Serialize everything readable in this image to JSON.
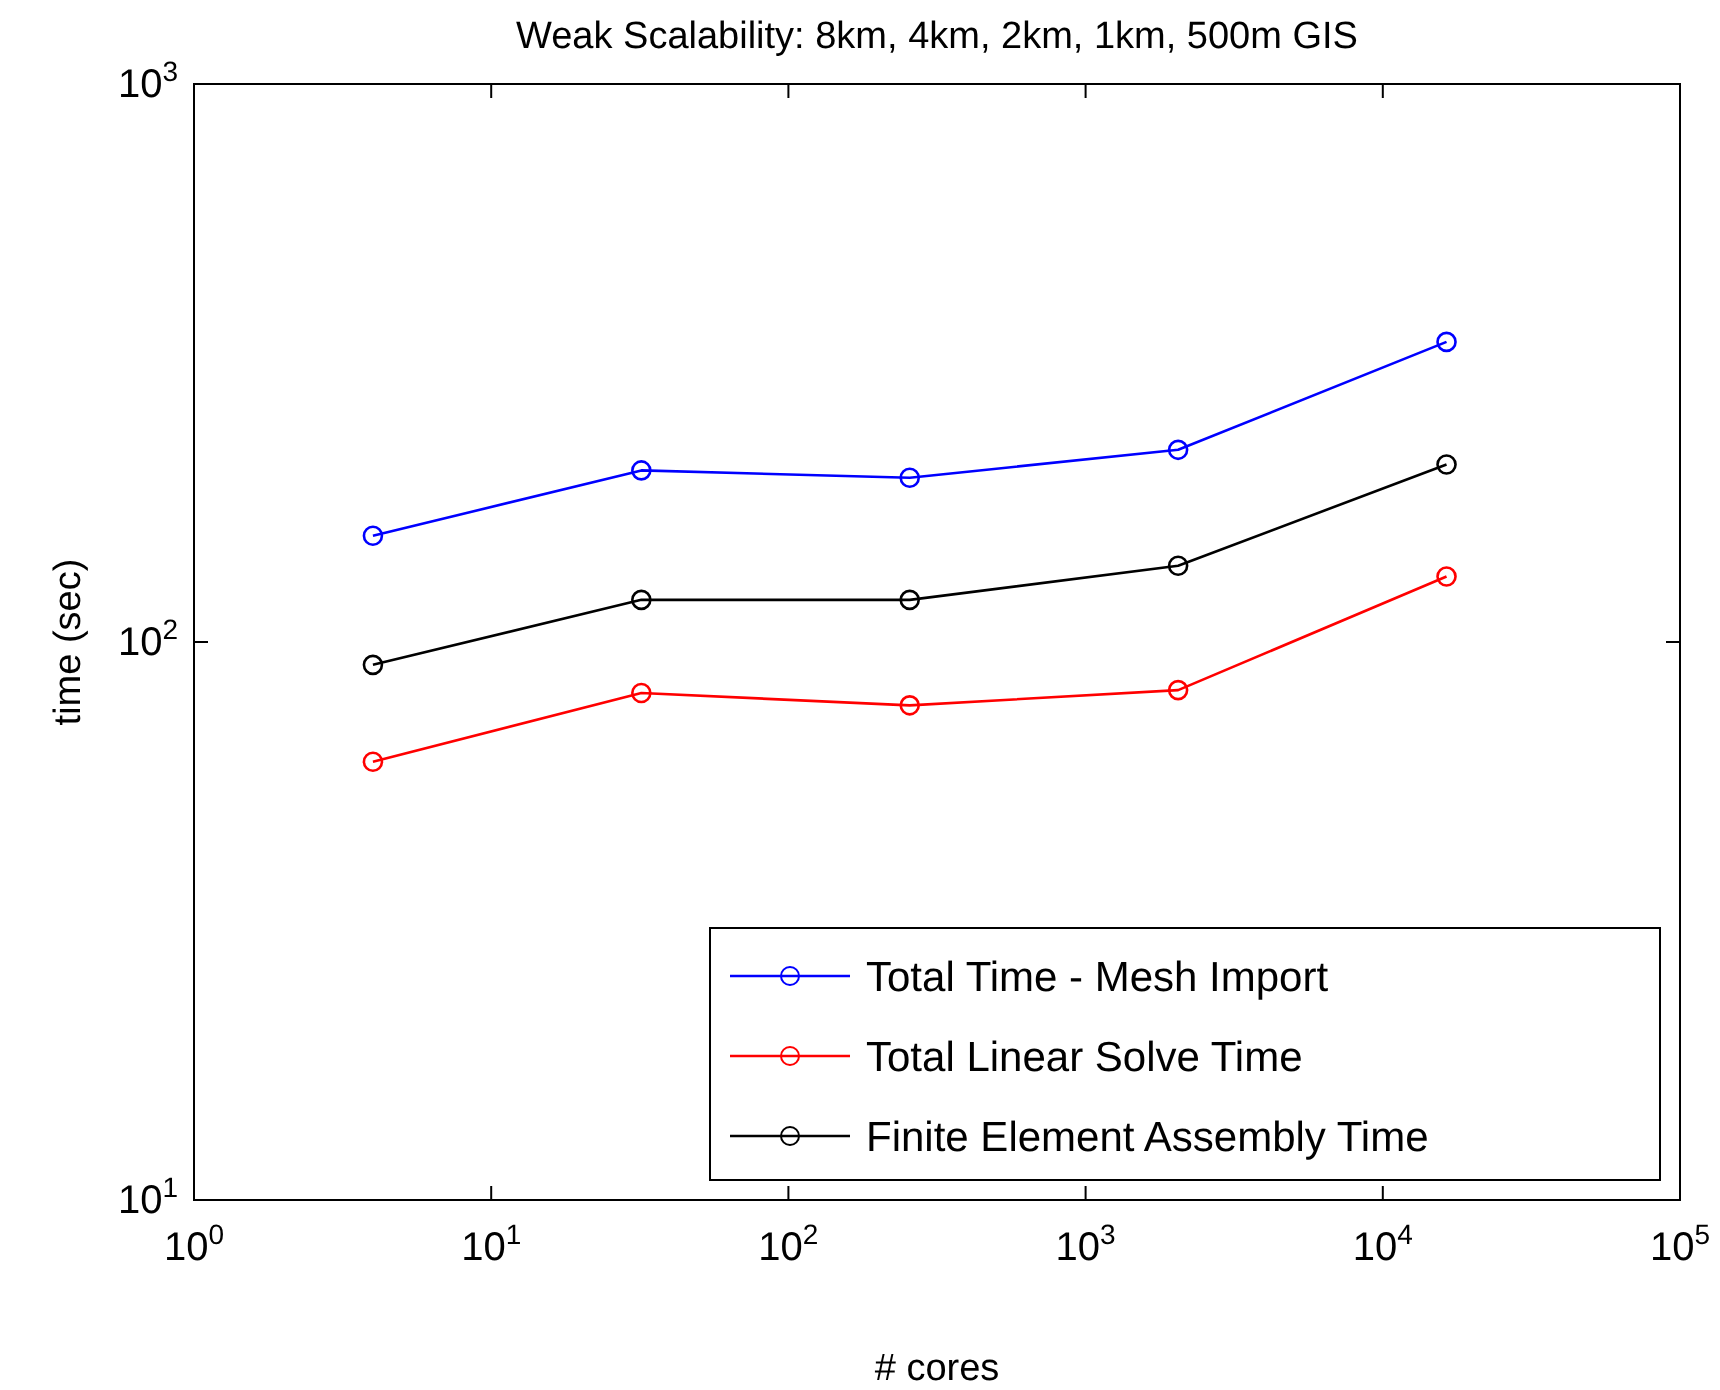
{
  "chart_data": {
    "type": "line",
    "title": "Weak Scalability: 8km, 4km, 2km, 1km, 500m GIS",
    "xlabel": "# cores",
    "ylabel": "time (sec)",
    "x": [
      4,
      32,
      256,
      2048,
      16384
    ],
    "series": [
      {
        "name": "Total Time - Mesh Import",
        "color": "#0000ff",
        "values": [
          155,
          203,
          197,
          221,
          345
        ]
      },
      {
        "name": "Total Linear Solve Time",
        "color": "#ff0000",
        "values": [
          61,
          81,
          77,
          82,
          131
        ]
      },
      {
        "name": "Finite Element Assembly Time",
        "color": "#000000",
        "values": [
          91,
          119,
          119,
          137,
          208
        ]
      }
    ],
    "log": "xy",
    "xlim": [
      1,
      100000
    ],
    "ylim": [
      10,
      1000
    ],
    "xticks": [
      {
        "value": 1,
        "label": "10$^{0}$"
      },
      {
        "value": 10,
        "label": "10$^{1}$"
      },
      {
        "value": 100,
        "label": "10$^{2}$"
      },
      {
        "value": 1000,
        "label": "10$^{3}$"
      },
      {
        "value": 10000,
        "label": "10$^{4}$"
      },
      {
        "value": 100000,
        "label": "10$^{5}$"
      }
    ],
    "yticks": [
      {
        "value": 10,
        "label": "10$^{1}$"
      },
      {
        "value": 100,
        "label": "10$^{2}$"
      },
      {
        "value": 1000,
        "label": "10$^{3}$"
      }
    ],
    "marker": "circle",
    "line_style": "solid",
    "legend": "bottom right",
    "grid": false
  }
}
